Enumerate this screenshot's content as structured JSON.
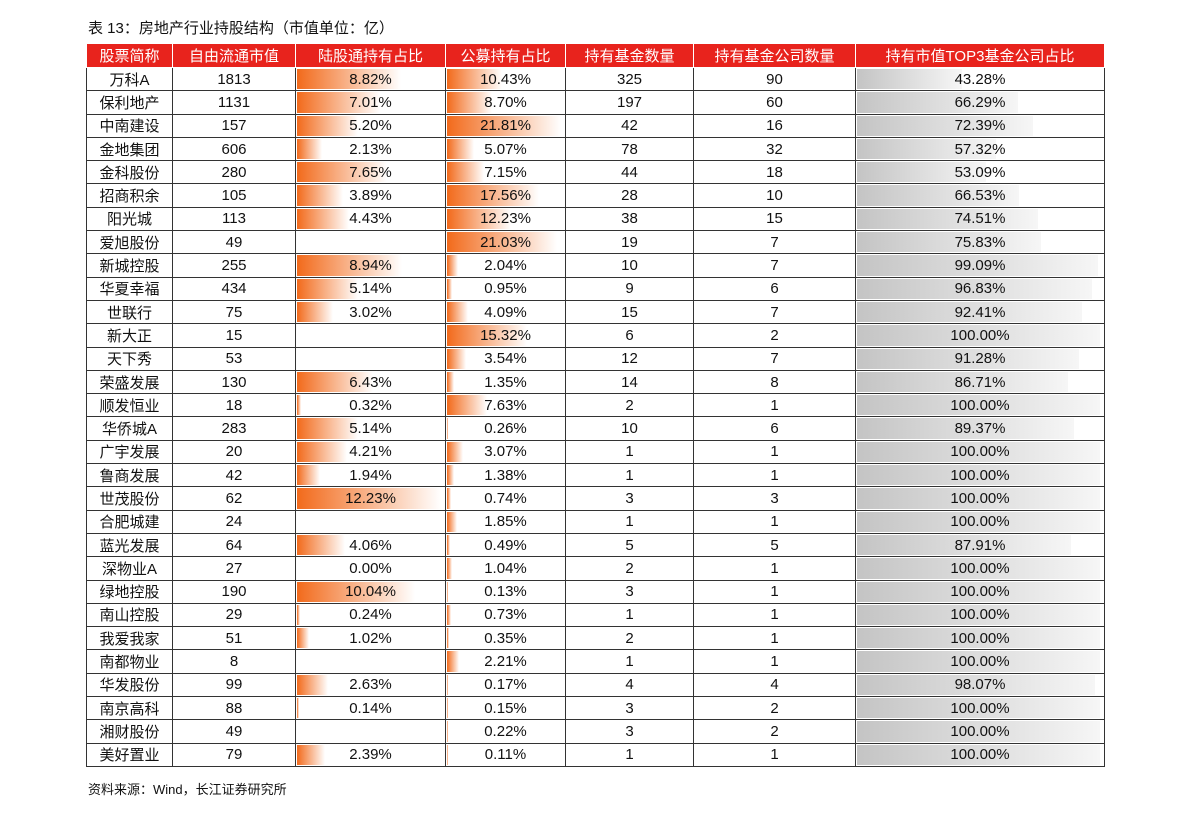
{
  "title": "表 13：房地产行业持股结构（市值单位：亿）",
  "table": {
    "header": [
      "股票简称",
      "自由流通市值",
      "陆股通持有占比",
      "公募持有占比",
      "持有基金数量",
      "持有基金公司数量",
      "持有市值TOP3基金公司占比"
    ],
    "rows": [
      [
        "万科A",
        "1813",
        "8.82%",
        "10.43%",
        "325",
        "90",
        "43.28%"
      ],
      [
        "保利地产",
        "1131",
        "7.01%",
        "8.70%",
        "197",
        "60",
        "66.29%"
      ],
      [
        "中南建设",
        "157",
        "5.20%",
        "21.81%",
        "42",
        "16",
        "72.39%"
      ],
      [
        "金地集团",
        "606",
        "2.13%",
        "5.07%",
        "78",
        "32",
        "57.32%"
      ],
      [
        "金科股份",
        "280",
        "7.65%",
        "7.15%",
        "44",
        "18",
        "53.09%"
      ],
      [
        "招商积余",
        "105",
        "3.89%",
        "17.56%",
        "28",
        "10",
        "66.53%"
      ],
      [
        "阳光城",
        "113",
        "4.43%",
        "12.23%",
        "38",
        "15",
        "74.51%"
      ],
      [
        "爱旭股份",
        "49",
        null,
        "21.03%",
        "19",
        "7",
        "75.83%"
      ],
      [
        "新城控股",
        "255",
        "8.94%",
        "2.04%",
        "10",
        "7",
        "99.09%"
      ],
      [
        "华夏幸福",
        "434",
        "5.14%",
        "0.95%",
        "9",
        "6",
        "96.83%"
      ],
      [
        "世联行",
        "75",
        "3.02%",
        "4.09%",
        "15",
        "7",
        "92.41%"
      ],
      [
        "新大正",
        "15",
        null,
        "15.32%",
        "6",
        "2",
        "100.00%"
      ],
      [
        "天下秀",
        "53",
        null,
        "3.54%",
        "12",
        "7",
        "91.28%"
      ],
      [
        "荣盛发展",
        "130",
        "6.43%",
        "1.35%",
        "14",
        "8",
        "86.71%"
      ],
      [
        "顺发恒业",
        "18",
        "0.32%",
        "7.63%",
        "2",
        "1",
        "100.00%"
      ],
      [
        "华侨城A",
        "283",
        "5.14%",
        "0.26%",
        "10",
        "6",
        "89.37%"
      ],
      [
        "广宇发展",
        "20",
        "4.21%",
        "3.07%",
        "1",
        "1",
        "100.00%"
      ],
      [
        "鲁商发展",
        "42",
        "1.94%",
        "1.38%",
        "1",
        "1",
        "100.00%"
      ],
      [
        "世茂股份",
        "62",
        "12.23%",
        "0.74%",
        "3",
        "3",
        "100.00%"
      ],
      [
        "合肥城建",
        "24",
        null,
        "1.85%",
        "1",
        "1",
        "100.00%"
      ],
      [
        "蓝光发展",
        "64",
        "4.06%",
        "0.49%",
        "5",
        "5",
        "87.91%"
      ],
      [
        "深物业A",
        "27",
        "0.00%",
        "1.04%",
        "2",
        "1",
        "100.00%"
      ],
      [
        "绿地控股",
        "190",
        "10.04%",
        "0.13%",
        "3",
        "1",
        "100.00%"
      ],
      [
        "南山控股",
        "29",
        "0.24%",
        "0.73%",
        "1",
        "1",
        "100.00%"
      ],
      [
        "我爱我家",
        "51",
        "1.02%",
        "0.35%",
        "2",
        "1",
        "100.00%"
      ],
      [
        "南都物业",
        "8",
        null,
        "2.21%",
        "1",
        "1",
        "100.00%"
      ],
      [
        "华发股份",
        "99",
        "2.63%",
        "0.17%",
        "4",
        "4",
        "98.07%"
      ],
      [
        "南京高科",
        "88",
        "0.14%",
        "0.15%",
        "3",
        "2",
        "100.00%"
      ],
      [
        "湘财股份",
        "49",
        null,
        "0.22%",
        "3",
        "2",
        "100.00%"
      ],
      [
        "美好置业",
        "79",
        "2.39%",
        "0.11%",
        "1",
        "1",
        "100.00%"
      ]
    ]
  },
  "source": "资料来源：Wind，长江证券研究所"
}
